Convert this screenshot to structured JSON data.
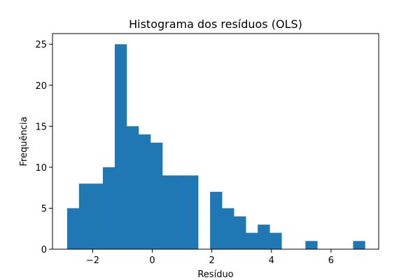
{
  "chart_data": {
    "type": "bar",
    "title": "Histograma dos resíduos (OLS)",
    "xlabel": "Resíduo",
    "ylabel": "Frequência",
    "xlim": [
      -3.35,
      7.6
    ],
    "ylim": [
      0,
      26.3
    ],
    "xticks": [
      -2,
      0,
      2,
      4,
      6
    ],
    "xtick_labels": [
      "−2",
      "0",
      "2",
      "4",
      "6"
    ],
    "yticks": [
      0,
      5,
      10,
      15,
      20,
      25
    ],
    "ytick_labels": [
      "0",
      "5",
      "10",
      "15",
      "20",
      "25"
    ],
    "bar_color": "#1f77b4",
    "bin_start": -2.86,
    "bin_width": 0.4,
    "counts": [
      5,
      8,
      8,
      10,
      25,
      15,
      14,
      13,
      9,
      9,
      9,
      0,
      7,
      5,
      4,
      2,
      3,
      2,
      0,
      0,
      1,
      0,
      0,
      0,
      1
    ],
    "grid": false,
    "legend": "none"
  }
}
